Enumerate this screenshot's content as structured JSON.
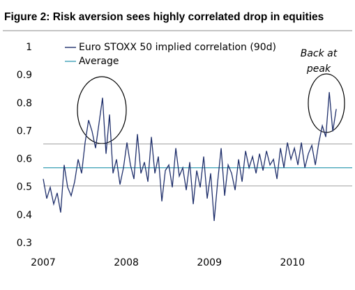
{
  "chart_data": {
    "type": "line",
    "title": "Figure 2: Risk aversion sees highly correlated drop in equities",
    "annotation": "Back at peak",
    "xlim": [
      2007,
      2010.72
    ],
    "xticks": [
      2007,
      2008,
      2009,
      2010
    ],
    "ylim": [
      0.3,
      1
    ],
    "yticks": [
      0.3,
      0.4,
      0.5,
      0.6,
      0.7,
      0.8,
      0.9,
      1
    ],
    "reference_lines": {
      "color": "#a0a0a0",
      "values": [
        0.655,
        0.505
      ]
    },
    "series": [
      {
        "name": "Euro STOXX 50 implied correlation (90d)",
        "color": "#1f2f6b",
        "x": [
          2007,
          2007.042,
          2007.084,
          2007.126,
          2007.168,
          2007.21,
          2007.252,
          2007.294,
          2007.336,
          2007.378,
          2007.42,
          2007.462,
          2007.504,
          2007.546,
          2007.588,
          2007.63,
          2007.672,
          2007.714,
          2007.756,
          2007.798,
          2007.84,
          2007.882,
          2007.924,
          2007.966,
          2008.008,
          2008.05,
          2008.092,
          2008.134,
          2008.176,
          2008.218,
          2008.26,
          2008.302,
          2008.344,
          2008.386,
          2008.428,
          2008.47,
          2008.512,
          2008.554,
          2008.596,
          2008.638,
          2008.68,
          2008.722,
          2008.764,
          2008.806,
          2008.848,
          2008.89,
          2008.932,
          2008.974,
          2009.016,
          2009.058,
          2009.1,
          2009.142,
          2009.184,
          2009.226,
          2009.268,
          2009.31,
          2009.352,
          2009.394,
          2009.436,
          2009.478,
          2009.52,
          2009.562,
          2009.604,
          2009.646,
          2009.688,
          2009.73,
          2009.772,
          2009.814,
          2009.856,
          2009.898,
          2009.94,
          2009.982,
          2010.024,
          2010.066,
          2010.108,
          2010.15,
          2010.192,
          2010.234,
          2010.276,
          2010.318,
          2010.36,
          2010.402,
          2010.444,
          2010.486,
          2010.528
        ],
        "values": [
          0.53,
          0.46,
          0.5,
          0.44,
          0.48,
          0.41,
          0.58,
          0.5,
          0.47,
          0.52,
          0.6,
          0.55,
          0.66,
          0.74,
          0.7,
          0.64,
          0.73,
          0.82,
          0.62,
          0.76,
          0.55,
          0.6,
          0.51,
          0.57,
          0.66,
          0.58,
          0.53,
          0.69,
          0.55,
          0.59,
          0.52,
          0.68,
          0.55,
          0.61,
          0.45,
          0.56,
          0.58,
          0.5,
          0.64,
          0.54,
          0.57,
          0.49,
          0.59,
          0.44,
          0.56,
          0.5,
          0.61,
          0.46,
          0.55,
          0.38,
          0.52,
          0.64,
          0.47,
          0.58,
          0.55,
          0.49,
          0.6,
          0.52,
          0.63,
          0.57,
          0.61,
          0.55,
          0.62,
          0.56,
          0.63,
          0.58,
          0.6,
          0.53,
          0.64,
          0.57,
          0.66,
          0.6,
          0.64,
          0.58,
          0.66,
          0.57,
          0.62,
          0.65,
          0.58,
          0.66,
          0.72,
          0.68,
          0.84,
          0.7,
          0.78
        ]
      },
      {
        "name": "Average",
        "color": "#3a9fb5",
        "x": [
          2007,
          2010.72
        ],
        "values": [
          0.57,
          0.57
        ]
      }
    ]
  }
}
